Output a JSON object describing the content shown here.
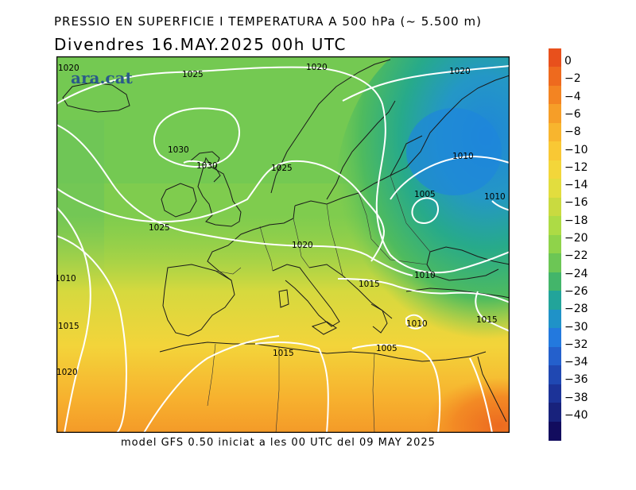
{
  "header": {
    "title": "PRESSIO EN SUPERFICIE I TEMPERATURA A 500 hPa (~ 5.500 m)",
    "subtitle": "Divendres  16.MAY.2025 00h UTC"
  },
  "footer": "model GFS 0.50 iniciat a les 00 UTC del 09 MAY 2025",
  "brand": "ara.cat",
  "isobar_labels": [
    "1020",
    "1025",
    "1020",
    "1020",
    "1030",
    "1030",
    "1025",
    "1010",
    "1005",
    "1010",
    "1025",
    "1020",
    "1010",
    "1015",
    "1010",
    "1015",
    "1015",
    "1010",
    "1005",
    "1015",
    "1020"
  ],
  "colorbar": {
    "labels": [
      "0",
      "−2",
      "−4",
      "−6",
      "−8",
      "−10",
      "−12",
      "−14",
      "−16",
      "−18",
      "−20",
      "−22",
      "−24",
      "−26",
      "−28",
      "−30",
      "−32",
      "−34",
      "−36",
      "−38",
      "−40"
    ],
    "colors": [
      "#e8501c",
      "#ee6a1e",
      "#f38422",
      "#f69e28",
      "#f8b52e",
      "#f9c834",
      "#f3d63a",
      "#e2dd3e",
      "#c9da40",
      "#addb45",
      "#8fd34a",
      "#6cc655",
      "#43b56a",
      "#22a49a",
      "#1f92c8",
      "#2379de",
      "#2460cc",
      "#2048b2",
      "#1c3398",
      "#18227c",
      "#120c5e"
    ]
  }
}
